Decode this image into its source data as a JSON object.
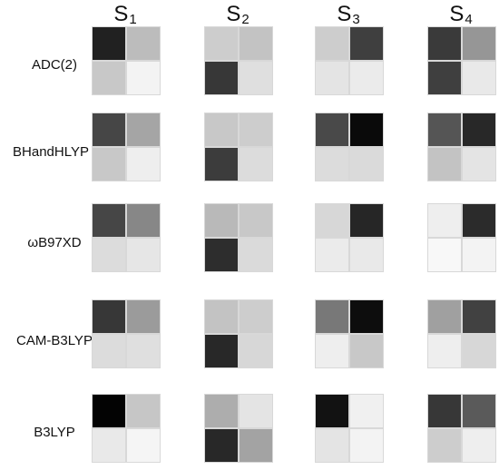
{
  "chart_data": {
    "type": "heatmap",
    "columns": [
      {
        "base": "S",
        "sub": "1"
      },
      {
        "base": "S",
        "sub": "2"
      },
      {
        "base": "S",
        "sub": "3"
      },
      {
        "base": "S",
        "sub": "4"
      }
    ],
    "rows": [
      "ADC(2)",
      "BHandHLYP",
      "ωB97XD",
      "CAM-B3LYP",
      "B3LYP"
    ],
    "scale": "grayscale; 1.0 = black, 0.0 = white",
    "matrices": [
      [
        [
          [
            0.87,
            0.25
          ],
          [
            0.2,
            0.03
          ]
        ],
        [
          [
            0.18,
            0.22
          ],
          [
            0.78,
            0.11
          ]
        ],
        [
          [
            0.18,
            0.75
          ],
          [
            0.09,
            0.06
          ]
        ],
        [
          [
            0.77,
            0.4
          ],
          [
            0.75,
            0.07
          ]
        ]
      ],
      [
        [
          [
            0.72,
            0.34
          ],
          [
            0.2,
            0.05
          ]
        ],
        [
          [
            0.2,
            0.18
          ],
          [
            0.76,
            0.12
          ]
        ],
        [
          [
            0.71,
            0.96
          ],
          [
            0.12,
            0.13
          ]
        ],
        [
          [
            0.66,
            0.84
          ],
          [
            0.22,
            0.09
          ]
        ]
      ],
      [
        [
          [
            0.72,
            0.46
          ],
          [
            0.12,
            0.08
          ]
        ],
        [
          [
            0.26,
            0.2
          ],
          [
            0.82,
            0.13
          ]
        ],
        [
          [
            0.14,
            0.85
          ],
          [
            0.06,
            0.07
          ]
        ],
        [
          [
            0.05,
            0.83
          ],
          [
            0.01,
            0.03
          ]
        ]
      ],
      [
        [
          [
            0.78,
            0.38
          ],
          [
            0.12,
            0.11
          ]
        ],
        [
          [
            0.22,
            0.18
          ],
          [
            0.84,
            0.14
          ]
        ],
        [
          [
            0.52,
            0.95
          ],
          [
            0.05,
            0.2
          ]
        ],
        [
          [
            0.36,
            0.74
          ],
          [
            0.05,
            0.14
          ]
        ]
      ],
      [
        [
          [
            0.99,
            0.21
          ],
          [
            0.07,
            0.02
          ]
        ],
        [
          [
            0.31,
            0.09
          ],
          [
            0.84,
            0.35
          ]
        ],
        [
          [
            0.93,
            0.04
          ],
          [
            0.09,
            0.03
          ]
        ],
        [
          [
            0.78,
            0.64
          ],
          [
            0.18,
            0.05
          ]
        ]
      ]
    ]
  }
}
